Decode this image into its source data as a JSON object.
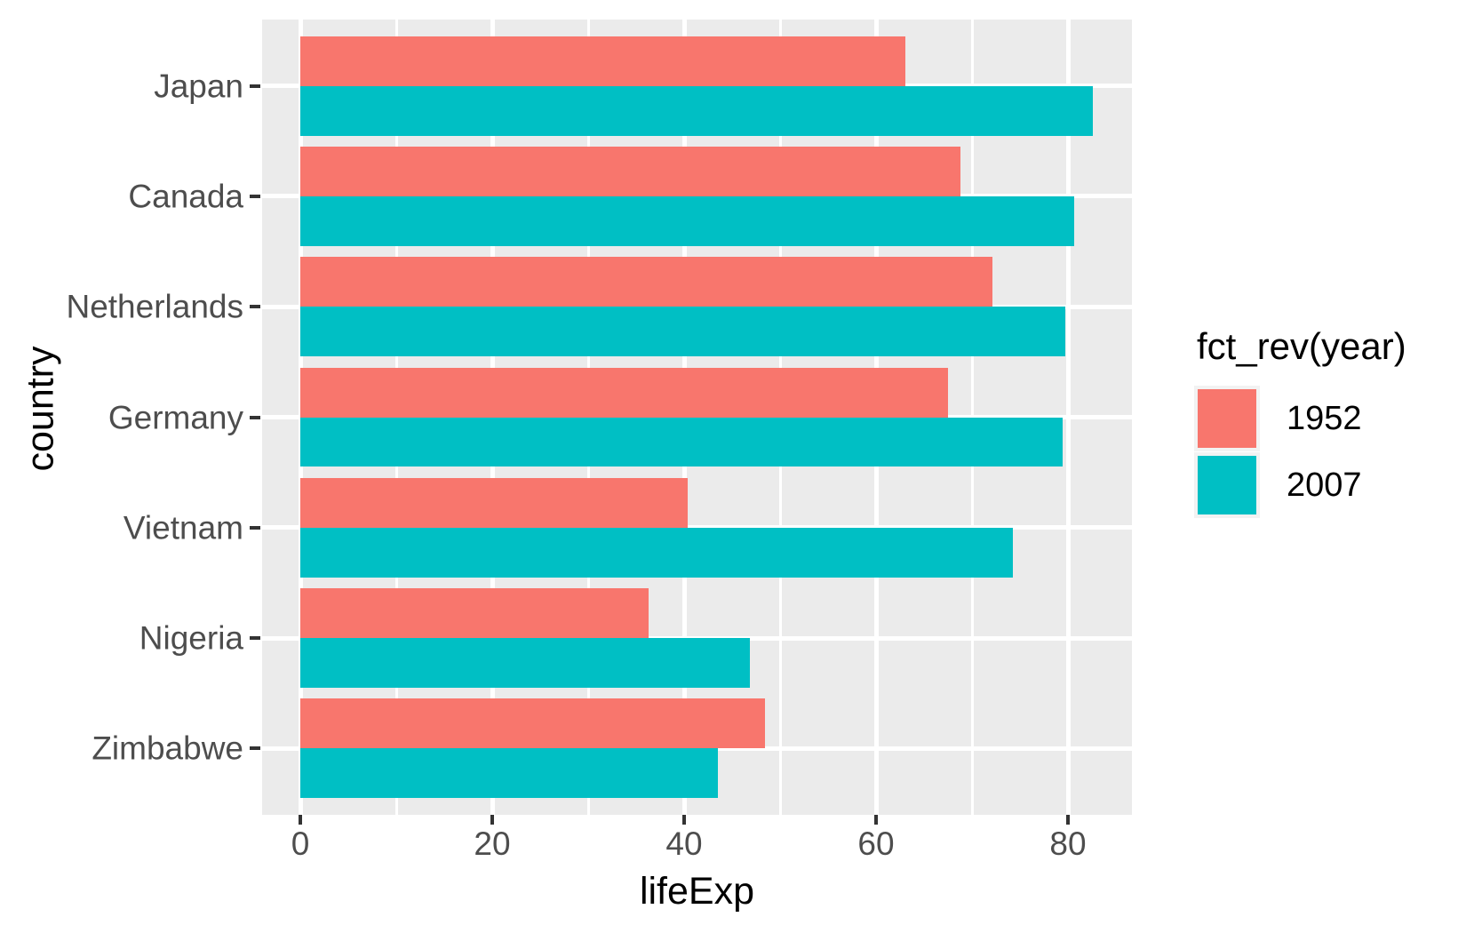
{
  "chart_data": {
    "type": "bar",
    "orientation": "horizontal",
    "title": "",
    "xlabel": "lifeExp",
    "ylabel": "country",
    "categories": [
      "Japan",
      "Canada",
      "Netherlands",
      "Germany",
      "Vietnam",
      "Nigeria",
      "Zimbabwe"
    ],
    "series": [
      {
        "name": "1952",
        "color": "#F8766D",
        "values": [
          63.03,
          68.75,
          72.13,
          67.5,
          40.41,
          36.32,
          48.45
        ]
      },
      {
        "name": "2007",
        "color": "#00BFC4",
        "values": [
          82.6,
          80.65,
          79.76,
          79.41,
          74.25,
          46.86,
          43.49
        ]
      }
    ],
    "x_major_ticks": [
      0,
      20,
      40,
      60,
      80
    ],
    "x_minor_ticks": [
      10,
      30,
      50,
      70
    ],
    "xlim": [
      -4.13,
      86.73
    ],
    "grid": "on",
    "legend_title": "fct_rev(year)",
    "legend_position": "right",
    "colors": {
      "panel_background": "#EBEBEB",
      "gridline": "#FFFFFF",
      "axis_text": "#4D4D4D",
      "axis_title": "#000000",
      "tick_mark": "#333333",
      "legend_key_background": "#F2F2F2",
      "figure_background": "#FFFFFF"
    }
  }
}
